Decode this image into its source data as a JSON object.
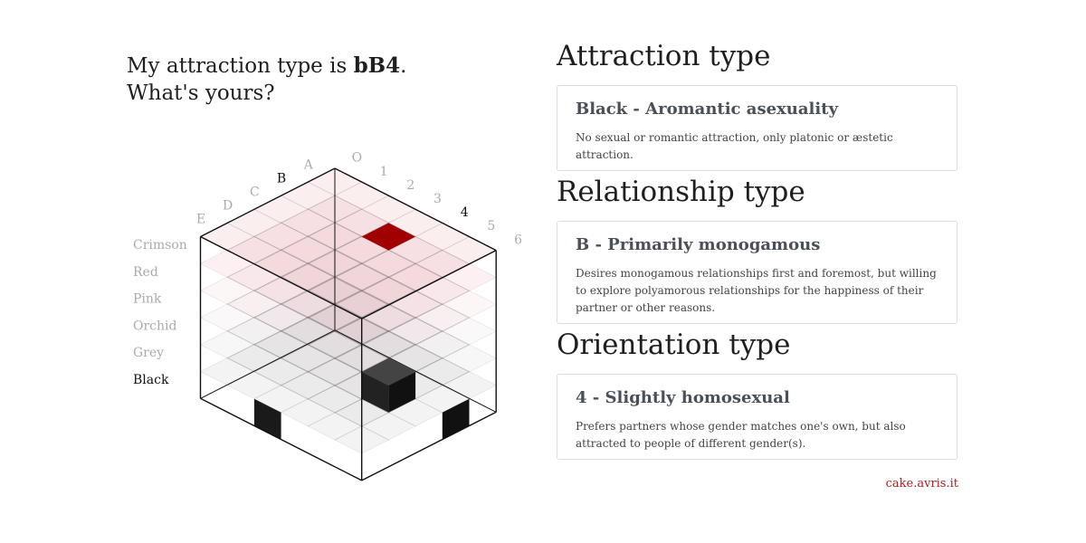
{
  "headline": {
    "line1_prefix": "My attraction type is ",
    "code": "bB4",
    "line1_suffix": ".",
    "line2": "What's yours?"
  },
  "cube": {
    "color_axis": {
      "labels": [
        "Crimson",
        "Red",
        "Pink",
        "Orchid",
        "Grey",
        "Black"
      ],
      "selected": "Black",
      "colors": [
        "#c0202e",
        "#d4445c",
        "#d98a9b",
        "#c8a5b8",
        "#9a9a9a",
        "#1a1a1a"
      ]
    },
    "relationship_axis": {
      "labels": [
        "E",
        "D",
        "C",
        "B",
        "A"
      ],
      "selected": "B"
    },
    "orientation_axis": {
      "labels": [
        "O",
        "1",
        "2",
        "3",
        "4",
        "5",
        "6"
      ],
      "selected": "4"
    },
    "highlight_color": "#a00000"
  },
  "sections": [
    {
      "heading": "Attraction type",
      "title": "Black - Aromantic asexuality",
      "description": "No sexual or romantic attraction, only platonic or æstetic attraction."
    },
    {
      "heading": "Relationship type",
      "title": "B - Primarily monogamous",
      "description": "Desires monogamous relationships first and foremost, but willing to explore polyamorous relationships for the happiness of their partner or other reasons."
    },
    {
      "heading": "Orientation type",
      "title": "4 - Slightly homosexual",
      "description": "Prefers partners whose gender matches one's own, but also attracted to people of different gender(s)."
    }
  ],
  "footer": {
    "link": "cake.avris.it"
  }
}
